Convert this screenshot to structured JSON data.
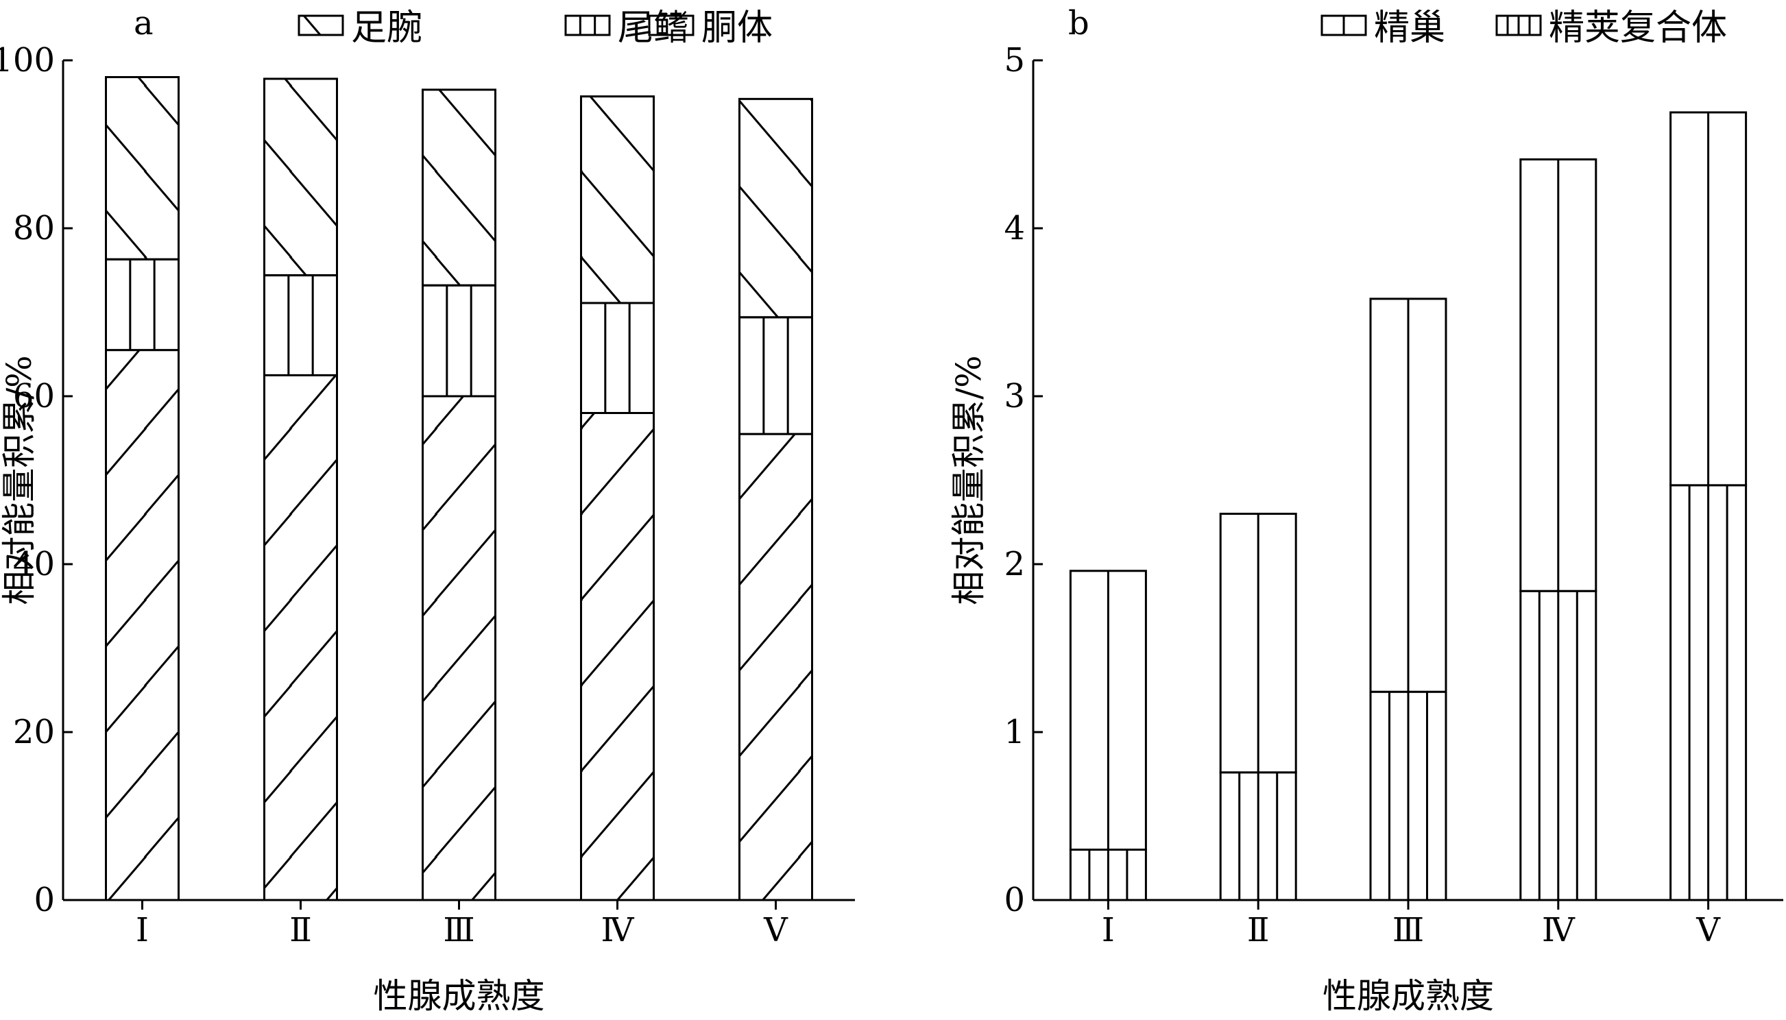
{
  "chart_data": [
    {
      "panel": "a",
      "type": "bar",
      "stacked": true,
      "categories": [
        "Ⅰ",
        "Ⅱ",
        "Ⅲ",
        "Ⅳ",
        "Ⅴ"
      ],
      "series": [
        {
          "name": "胴体",
          "pattern": "hatch-forward",
          "values": [
            65.5,
            62.5,
            60.0,
            58.0,
            55.5
          ]
        },
        {
          "name": "尾鳍",
          "pattern": "vertical-lines",
          "values": [
            10.8,
            11.9,
            13.2,
            13.1,
            13.9
          ]
        },
        {
          "name": "足腕",
          "pattern": "hatch-backward",
          "values": [
            21.7,
            23.4,
            23.3,
            24.6,
            26.0
          ]
        }
      ],
      "legend_order": [
        "足腕",
        "尾鳍",
        "胴体"
      ],
      "legend_position": "top",
      "xlabel": "性腺成熟度",
      "ylabel": "相对能量积累/%",
      "ylim": [
        0,
        100
      ],
      "yticks": [
        0,
        20,
        40,
        60,
        80,
        100
      ],
      "grid": false
    },
    {
      "panel": "b",
      "type": "bar",
      "stacked": true,
      "categories": [
        "Ⅰ",
        "Ⅱ",
        "Ⅲ",
        "Ⅳ",
        "Ⅴ"
      ],
      "series": [
        {
          "name": "精荚复合体",
          "pattern": "vertical-lines-dense",
          "values": [
            0.3,
            0.76,
            1.24,
            1.84,
            2.47
          ]
        },
        {
          "name": "精巢",
          "pattern": "center-line",
          "values": [
            1.66,
            1.54,
            2.34,
            2.57,
            2.22
          ]
        }
      ],
      "legend_order": [
        "精巢",
        "精荚复合体"
      ],
      "legend_position": "top-right",
      "xlabel": "性腺成熟度",
      "ylabel": "相对能量积累/%",
      "ylim": [
        0,
        5
      ],
      "yticks": [
        0,
        1,
        2,
        3,
        4,
        5
      ],
      "grid": false
    }
  ]
}
